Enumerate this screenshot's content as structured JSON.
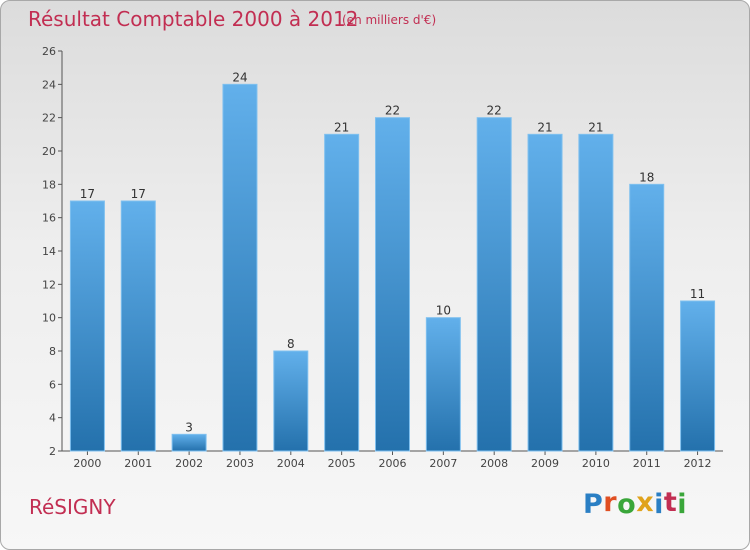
{
  "header": {
    "title": "Résultat Comptable 2000 à 2012",
    "subtitle": "(en milliers d'€)"
  },
  "footer": {
    "commune": "RéSIGNY",
    "logo_letters": [
      "P",
      "r",
      "o",
      "x",
      "i",
      "t",
      "i"
    ],
    "logo_colors": [
      "#2a7fc4",
      "#e04f22",
      "#3aa63a",
      "#e0a31c",
      "#2a7fc4",
      "#c22e52",
      "#3aa63a"
    ]
  },
  "colors": {
    "accent": "#c22e52",
    "bar_light": "#62b0eb",
    "bar_dark": "#2471ac",
    "axis": "#555555"
  },
  "chart_data": {
    "type": "bar",
    "title": "Résultat Comptable 2000 à 2012",
    "subtitle": "(en milliers d'€)",
    "categories": [
      "2000",
      "2001",
      "2002",
      "2003",
      "2004",
      "2005",
      "2006",
      "2007",
      "2008",
      "2009",
      "2010",
      "2011",
      "2012"
    ],
    "values": [
      17,
      17,
      3,
      24,
      8,
      21,
      22,
      10,
      22,
      21,
      21,
      18,
      11
    ],
    "ylim": [
      2,
      26
    ],
    "yticks": [
      2,
      4,
      6,
      8,
      10,
      12,
      14,
      16,
      18,
      20,
      22,
      24,
      26
    ],
    "xlabel": "",
    "ylabel": "",
    "grid": false,
    "legend": false
  }
}
